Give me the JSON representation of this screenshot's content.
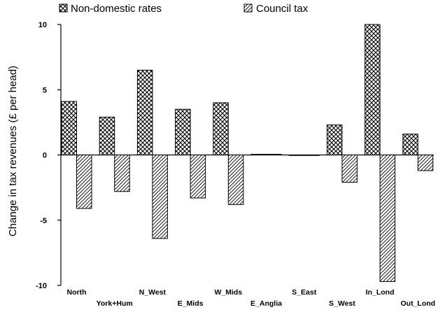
{
  "chart_data": {
    "type": "bar",
    "title": "",
    "xlabel": "",
    "ylabel": "Change in tax revenues (£ per head)",
    "ylim": [
      -10,
      10
    ],
    "yticks": [
      "10",
      "5",
      "0",
      "-5",
      "-10"
    ],
    "yticks_values": [
      10,
      5,
      0,
      -5,
      -10
    ],
    "grid": false,
    "legend_position": "top",
    "categories": [
      "North",
      "York+Hum",
      "N_West",
      "E_Mids",
      "W_Mids",
      "E_Anglia",
      "S_East",
      "S_West",
      "In_Lond",
      "Out_Lond"
    ],
    "series": [
      {
        "name": "Non-domestic rates",
        "pattern": "crosshatch",
        "values": [
          4.1,
          2.9,
          6.5,
          3.5,
          4.0,
          0.05,
          0.0,
          2.3,
          10.0,
          1.6
        ]
      },
      {
        "name": "Council tax",
        "pattern": "diagonal",
        "values": [
          -4.1,
          -2.8,
          -6.4,
          -3.3,
          -3.8,
          0.05,
          0.0,
          -2.1,
          -9.7,
          -1.2
        ]
      }
    ]
  }
}
